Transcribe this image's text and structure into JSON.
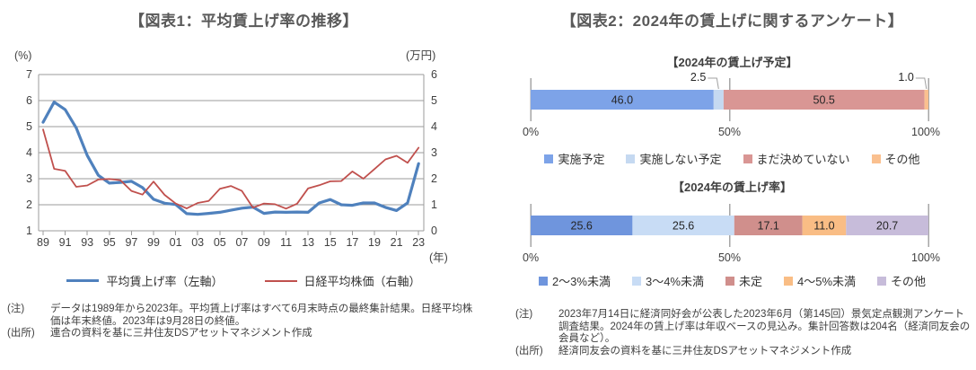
{
  "panel1": {
    "title": "【図表1：平均賃上げ率の推移】",
    "note_label": "(注)",
    "note": "データは1989年から2023年。平均賃上げ率はすべて6月末時点の最終集計結果。日経平均株価は年末終値。2023年は9月28日の終値。",
    "source_label": "(出所)",
    "source": "連合の資料を基に三井住友DSアセットマネジメント作成"
  },
  "panel2": {
    "title": "【図表2：2024年の賃上げに関するアンケート】",
    "note_label": "(注)",
    "note": "2023年7月14日に経済同好会が公表した2023年6月（第145回）景気定点観測アンケート調査結果。2024年の賃上げ率は年収ベースの見込み。集計回答数は204名（経済同友会の会員など）。",
    "source_label": "(出所)",
    "source": "経済同友会の資料を基に三井住友DSアセットマネジメント作成"
  },
  "chart_data": [
    {
      "type": "line",
      "title": "平均賃上げ率の推移",
      "x": [
        1989,
        1990,
        1991,
        1992,
        1993,
        1994,
        1995,
        1996,
        1997,
        1998,
        1999,
        2000,
        2001,
        2002,
        2003,
        2004,
        2005,
        2006,
        2007,
        2008,
        2009,
        2010,
        2011,
        2012,
        2013,
        2014,
        2015,
        2016,
        2017,
        2018,
        2019,
        2020,
        2021,
        2022,
        2023
      ],
      "x_tick_labels": [
        "89",
        "91",
        "93",
        "95",
        "97",
        "99",
        "01",
        "03",
        "05",
        "07",
        "09",
        "11",
        "13",
        "15",
        "17",
        "19",
        "21",
        "23"
      ],
      "x_axis_unit": "(年)",
      "left_axis": {
        "unit": "(%)",
        "min": 1,
        "max": 7,
        "ticks": [
          7,
          6,
          5,
          4,
          3,
          2,
          1
        ]
      },
      "right_axis": {
        "unit": "(万円)",
        "min": 0,
        "max": 6,
        "ticks": [
          6,
          5,
          4,
          3,
          2,
          1,
          0
        ]
      },
      "grid": true,
      "legend_position": "bottom",
      "series": [
        {
          "name": "平均賃上げ率（左軸）",
          "axis": "left",
          "color": "#4f81bd",
          "values": [
            5.17,
            5.94,
            5.65,
            4.95,
            3.89,
            3.13,
            2.83,
            2.86,
            2.9,
            2.66,
            2.21,
            2.06,
            2.01,
            1.66,
            1.63,
            1.67,
            1.71,
            1.79,
            1.87,
            1.91,
            1.67,
            1.72,
            1.71,
            1.72,
            1.71,
            2.07,
            2.2,
            2.0,
            1.98,
            2.07,
            2.07,
            1.9,
            1.78,
            2.07,
            3.58
          ]
        },
        {
          "name": "日経平均株価（右軸）",
          "axis": "right",
          "color": "#c0504d",
          "values": [
            3.89,
            2.38,
            2.3,
            1.69,
            1.74,
            1.97,
            1.99,
            1.94,
            1.53,
            1.39,
            1.89,
            1.38,
            1.05,
            0.86,
            1.07,
            1.15,
            1.61,
            1.72,
            1.53,
            0.89,
            1.05,
            1.02,
            0.85,
            1.04,
            1.63,
            1.75,
            1.9,
            1.91,
            2.28,
            2.0,
            2.37,
            2.74,
            2.88,
            2.61,
            3.19
          ]
        }
      ]
    },
    {
      "type": "bar",
      "stacked": true,
      "horizontal": true,
      "title": "【2024年の賃上げ予定】",
      "axis_ticks": [
        "0%",
        "50%",
        "100%"
      ],
      "segments": [
        {
          "label": "実施予定",
          "value": 46.0,
          "display": "46.0",
          "color": "#7da3e8",
          "callout": false
        },
        {
          "label": "実施しない予定",
          "value": 2.5,
          "display": "2.5",
          "color": "#c5d9f1",
          "callout": true
        },
        {
          "label": "まだ決めていない",
          "value": 50.5,
          "display": "50.5",
          "color": "#d99694",
          "callout": false
        },
        {
          "label": "その他",
          "value": 1.0,
          "display": "1.0",
          "color": "#fac08f",
          "callout": true
        }
      ]
    },
    {
      "type": "bar",
      "stacked": true,
      "horizontal": true,
      "title": "【2024年の賃上げ率】",
      "axis_ticks": [
        "0%",
        "50%",
        "100%"
      ],
      "segments": [
        {
          "label": "2～3%未満",
          "value": 25.6,
          "display": "25.6",
          "color": "#6f95dd",
          "callout": false
        },
        {
          "label": "3～4%未満",
          "value": 25.6,
          "display": "25.6",
          "color": "#c8dcf5",
          "callout": false
        },
        {
          "label": "未定",
          "value": 17.1,
          "display": "17.1",
          "color": "#d08f8c",
          "callout": false
        },
        {
          "label": "4～5%未満",
          "value": 11.0,
          "display": "11.0",
          "color": "#f9bd85",
          "callout": false
        },
        {
          "label": "その他",
          "value": 20.7,
          "display": "20.7",
          "color": "#c7bcda",
          "callout": false
        }
      ]
    }
  ]
}
